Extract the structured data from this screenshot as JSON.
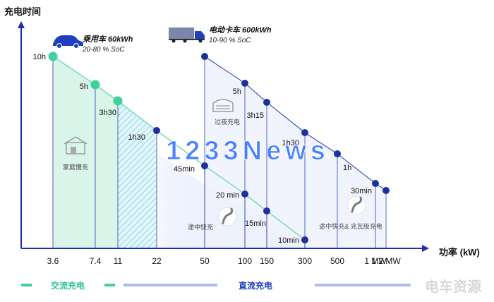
{
  "chart_data": {
    "type": "scatter",
    "ylabel": "充电时间",
    "xlabel": "功率 (kW)",
    "x_ticks": [
      "3.6",
      "7.4",
      "11",
      "22",
      "50",
      "100",
      "150",
      "300",
      "500",
      "1 MW",
      "1.2 MW"
    ],
    "series": [
      {
        "name": "乘用车 60kWh",
        "subtitle": "20-80 % SoC",
        "color": "#2ecf8e",
        "points": [
          {
            "x": "3.6",
            "y_label": "10h",
            "node": "green"
          },
          {
            "x": "7.4",
            "y_label": "5h",
            "node": "green"
          },
          {
            "x": "11",
            "y_label": "3h30",
            "node": "green"
          },
          {
            "x": "22",
            "y_label": "1h30",
            "node": "blue"
          },
          {
            "x": "50",
            "y_label": "45min",
            "node": "blue"
          },
          {
            "x": "100",
            "y_label": "20 min",
            "node": "blue"
          },
          {
            "x": "150",
            "y_label": "15min",
            "node": "blue"
          },
          {
            "x": "300",
            "y_label": "10min",
            "node": "blue"
          }
        ]
      },
      {
        "name": "电动卡车 600kWh",
        "subtitle": "10-90 % SoC",
        "color": "#1f3fbf",
        "points": [
          {
            "x": "50",
            "y_label": "",
            "node": "blue"
          },
          {
            "x": "100",
            "y_label": "5h",
            "node": "blue"
          },
          {
            "x": "150",
            "y_label": "3h15",
            "node": "blue"
          },
          {
            "x": "300",
            "y_label": "1h30",
            "node": "blue"
          },
          {
            "x": "500",
            "y_label": "1h",
            "node": "blue"
          },
          {
            "x": "1 MW",
            "y_label": "30min",
            "node": "blue"
          },
          {
            "x": "1.2 MW",
            "y_label": "",
            "node": "blue"
          }
        ]
      }
    ],
    "zones": [
      {
        "label": "家庭慢充"
      },
      {
        "label": "过夜充电"
      },
      {
        "label": "途中快充"
      },
      {
        "label": "途中快充& 兆瓦级充电"
      }
    ],
    "legend": {
      "ac_label": "交流充电",
      "dc_label": "直流充电",
      "ac_color": "#3ed19a",
      "dc_color": "#aebdf0"
    },
    "watermark": "1233News",
    "brand": "电车资源"
  }
}
